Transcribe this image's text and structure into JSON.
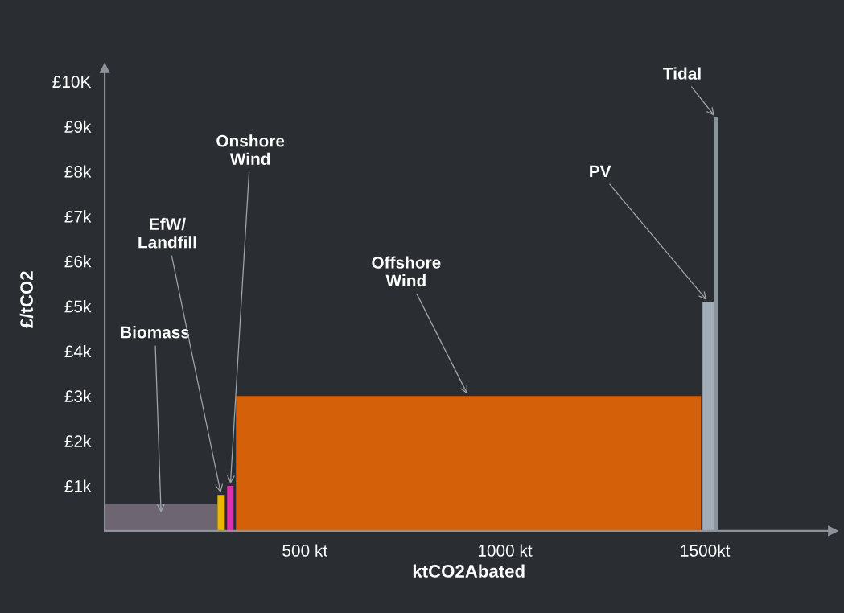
{
  "chart_data": {
    "type": "area",
    "xlabel": "ktCO2Abated",
    "ylabel": "£/tCO2",
    "series": [
      {
        "name": "Biomass",
        "color": "#6d6672",
        "x": [
          0,
          282
        ],
        "values": [
          600,
          600
        ]
      },
      {
        "name": "EfW/\nLandfill",
        "color": "#f0b400",
        "x": [
          282,
          300
        ],
        "values": [
          800,
          800
        ]
      },
      {
        "name": "Onshore\nWind",
        "color": "#e030b0",
        "x": [
          306,
          322
        ],
        "values": [
          1000,
          1000
        ]
      },
      {
        "name": "Offshore\nWind",
        "color": "#d4600a",
        "x": [
          328,
          1490
        ],
        "values": [
          3000,
          3000
        ]
      },
      {
        "name": "PV",
        "color": "#a4aeb8",
        "x": [
          1494,
          1522
        ],
        "values": [
          5100,
          5100
        ]
      },
      {
        "name": "Tidal",
        "color": "#8a949c",
        "x": [
          1522,
          1532
        ],
        "values": [
          9200,
          9200
        ]
      }
    ],
    "xlim": [
      0,
      1820
    ],
    "ylim": [
      0,
      10300
    ],
    "xticks": [
      {
        "value": 500,
        "label": "500 kt"
      },
      {
        "value": 1000,
        "label": "1000 kt"
      },
      {
        "value": 1500,
        "label": "1500kt"
      }
    ],
    "yticks": [
      {
        "value": 1000,
        "label": "£1k"
      },
      {
        "value": 2000,
        "label": "£2k"
      },
      {
        "value": 3000,
        "label": "£3k"
      },
      {
        "value": 4000,
        "label": "£4k"
      },
      {
        "value": 5000,
        "label": "£5k"
      },
      {
        "value": 6000,
        "label": "£6k"
      },
      {
        "value": 7000,
        "label": "£7k"
      },
      {
        "value": 8000,
        "label": "£8k"
      },
      {
        "value": 9000,
        "label": "£9k"
      },
      {
        "value": 10000,
        "label": "£10K"
      }
    ],
    "grid": false,
    "legend": false
  }
}
